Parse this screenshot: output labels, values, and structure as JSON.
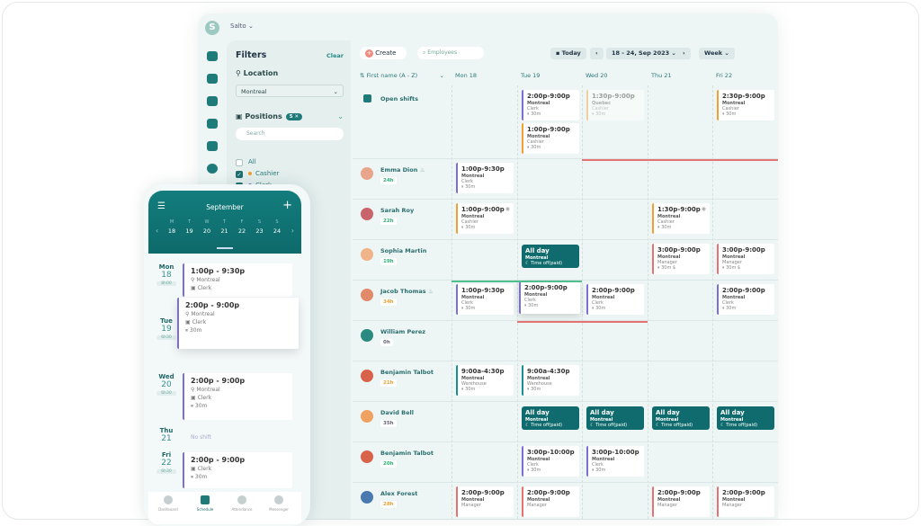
{
  "app": {
    "logo_letter": "S",
    "org_name": "Salto"
  },
  "sidebar": {
    "icons": [
      "home-icon",
      "schedule-icon",
      "attendance-icon",
      "team-icon",
      "tasks-icon",
      "messenger-icon"
    ]
  },
  "filters": {
    "title": "Filters",
    "clear_label": "Clear",
    "location_label": "Location",
    "location_value": "Montreal",
    "positions_label": "Positions",
    "positions_count": "5 ✕",
    "search_placeholder": "Search",
    "options": [
      {
        "label": "All",
        "checked": false,
        "color": ""
      },
      {
        "label": "Cashier",
        "checked": true,
        "color": "#f0a030"
      },
      {
        "label": "Clerk",
        "checked": true,
        "color": "#7b6fd6"
      }
    ]
  },
  "toolbar": {
    "create_label": "Create",
    "search_placeholder": "Employees",
    "today_label": "Today",
    "date_range": "18 - 24, Sep 2023",
    "view": "Week"
  },
  "grid": {
    "sort_label": "⇅ First name (A - Z)",
    "days": [
      "Mon 18",
      "Tue 19",
      "Wed 20",
      "Thu 21",
      "Fri 22"
    ],
    "open_shifts_label": "Open shifts"
  },
  "colors": {
    "Clerk": "#7b6fd6",
    "Cashier": "#f0a030",
    "Manager": "#e57373",
    "Warehouse": "#1a8f8f",
    "time_off": "#0f6b6d",
    "accent": "#1f7a7a"
  },
  "open_shifts": [
    {
      "day": 1,
      "time": "2:00p-9:00p",
      "location": "Montreal",
      "position": "Clerk",
      "break": "30m"
    },
    {
      "day": 1,
      "time": "1:00p-9:00p",
      "location": "Montreal",
      "position": "Cashier",
      "break": "30m",
      "stack": 1
    },
    {
      "day": 2,
      "time": "1:30p-9:00p",
      "location": "Quebec",
      "position": "Cashier",
      "break": "30m",
      "faded": true
    },
    {
      "day": 4,
      "time": "2:30p-9:00p",
      "location": "Montreal",
      "position": "Cashier",
      "break": "30m"
    }
  ],
  "employees": [
    {
      "name": "Emma Dion",
      "hours": "24h",
      "hours_color": "#2bb673",
      "icon": "cake-icon",
      "avatar": "#e9a48c",
      "shifts": [
        {
          "day": 0,
          "time": "1:00p-9:30p",
          "location": "Montreal",
          "position": "Clerk",
          "break": "30m"
        }
      ]
    },
    {
      "name": "Sarah Roy",
      "hours": "22h",
      "hours_color": "#2bb673",
      "avatar": "#c9646c",
      "shifts": [
        {
          "day": 0,
          "time": "1:00p-9:00p",
          "location": "Montreal",
          "position": "Cashier",
          "break": "30m",
          "eye": true
        },
        {
          "day": 3,
          "time": "1:30p-9:00p",
          "location": "Montreal",
          "position": "Cashier",
          "break": "30m",
          "eye": true
        }
      ]
    },
    {
      "name": "Sophia Martin",
      "hours": "19h",
      "hours_color": "#2bb673",
      "avatar": "#f0b48a",
      "shifts": [
        {
          "day": 1,
          "type": "timeoff",
          "time": "All day",
          "location": "Montreal",
          "position": "☾ Time off(paid)"
        },
        {
          "day": 3,
          "time": "3:00p-9:00p",
          "location": "Montreal",
          "position": "Manager",
          "break": "30m $"
        },
        {
          "day": 4,
          "time": "3:00p-9:00p",
          "location": "Montreal",
          "position": "Manager",
          "break": "30m $"
        }
      ]
    },
    {
      "name": "Jacob Thomas",
      "hours": "34h",
      "hours_color": "#f0a030",
      "icon": "cake-icon",
      "avatar": "#e08a6a",
      "shifts": [
        {
          "day": 0,
          "time": "1:00p-9:30p",
          "location": "Montreal",
          "position": "Clerk",
          "break": "30m"
        },
        {
          "day": 1,
          "time": "2:00p-9:00p",
          "location": "Montreal",
          "position": "Clerk",
          "break": "30m",
          "lift": true
        },
        {
          "day": 2,
          "time": "2:00p-9:00p",
          "location": "Montreal",
          "position": "Clerk",
          "break": "30m"
        },
        {
          "day": 4,
          "time": "2:00p-9:00p",
          "location": "Montreal",
          "position": "Clerk",
          "break": "30m"
        }
      ]
    },
    {
      "name": "William Perez",
      "hours": "0h",
      "hours_color": "#667",
      "avatar": "#2a8a80",
      "shifts": []
    },
    {
      "name": "Benjamin Talbot",
      "hours": "21h",
      "hours_color": "#f0a030",
      "avatar": "#d8624a",
      "shifts": [
        {
          "day": 0,
          "time": "9:00a-4:30p",
          "location": "Montreal",
          "position": "Warehouse",
          "break": "30m"
        },
        {
          "day": 1,
          "time": "9:00a-4:30p",
          "location": "Montreal",
          "position": "Warehouse",
          "break": "30m"
        }
      ]
    },
    {
      "name": "David Bell",
      "hours": "35h",
      "hours_color": "#667",
      "avatar": "#f0a060",
      "shifts": [
        {
          "day": 1,
          "type": "timeoff",
          "time": "All day",
          "location": "Montreal",
          "position": "☾ Time off(paid)"
        },
        {
          "day": 2,
          "type": "timeoff",
          "time": "All day",
          "location": "Montreal",
          "position": "☾ Time off(paid)"
        },
        {
          "day": 3,
          "type": "timeoff",
          "time": "All day",
          "location": "Montreal",
          "position": "☾ Time off(paid)"
        },
        {
          "day": 4,
          "type": "timeoff",
          "time": "All day",
          "location": "Montreal",
          "position": "☾ Time off(paid)"
        }
      ]
    },
    {
      "name": "Benjamin Talbot",
      "hours": "20h",
      "hours_color": "#2bb673",
      "avatar": "#d8624a",
      "shifts": [
        {
          "day": 1,
          "time": "3:00p-10:00p",
          "location": "Montreal",
          "position": "Clerk",
          "break": "30m"
        },
        {
          "day": 2,
          "time": "3:00p-10:00p",
          "location": "Montreal",
          "position": "Clerk",
          "break": "30m"
        }
      ]
    },
    {
      "name": "Alex Forest",
      "hours": "28h",
      "hours_color": "#f0a030",
      "avatar": "#4a78b0",
      "shifts": [
        {
          "day": 0,
          "time": "2:00p-9:00p",
          "location": "Montreal",
          "position": "Manager"
        },
        {
          "day": 1,
          "time": "2:00p-9:00p",
          "location": "Montreal",
          "position": "Manager"
        },
        {
          "day": 3,
          "time": "2:00p-9:00p",
          "location": "Montreal",
          "position": "Manager"
        },
        {
          "day": 4,
          "time": "2:00p-9:00p",
          "location": "Montreal",
          "position": "Manager"
        }
      ]
    }
  ],
  "mobile": {
    "month": "September",
    "week": [
      {
        "w": "M",
        "n": "18"
      },
      {
        "w": "T",
        "n": "19"
      },
      {
        "w": "W",
        "n": "20"
      },
      {
        "w": "T",
        "n": "21"
      },
      {
        "w": "F",
        "n": "22"
      },
      {
        "w": "S",
        "n": "23"
      },
      {
        "w": "S",
        "n": "24"
      }
    ],
    "days": [
      {
        "day": "Mon",
        "num": "18",
        "hours": "8h00",
        "time": "1:00p - 9:30p",
        "location": "Montreal",
        "position": "Clerk"
      },
      {
        "day": "Tue",
        "num": "19",
        "hours": "6h30",
        "time": "2:00p - 9:00p",
        "location": "Montreal",
        "position": "Clerk",
        "break": "30m"
      },
      {
        "day": "Wed",
        "num": "20",
        "hours": "6h30",
        "time": "2:00p - 9:00p",
        "location": "Montreal",
        "position": "Clerk",
        "break": "30m"
      },
      {
        "day": "Thu",
        "num": "21",
        "empty": "No shift"
      },
      {
        "day": "Fri",
        "num": "22",
        "hours": "6h30",
        "time": "2:00p - 9:00p",
        "position": "Clerk",
        "break": "30m"
      }
    ],
    "nav": [
      "Dashboard",
      "Schedule",
      "Attendance",
      "Messenger"
    ],
    "active_nav": "Schedule"
  }
}
